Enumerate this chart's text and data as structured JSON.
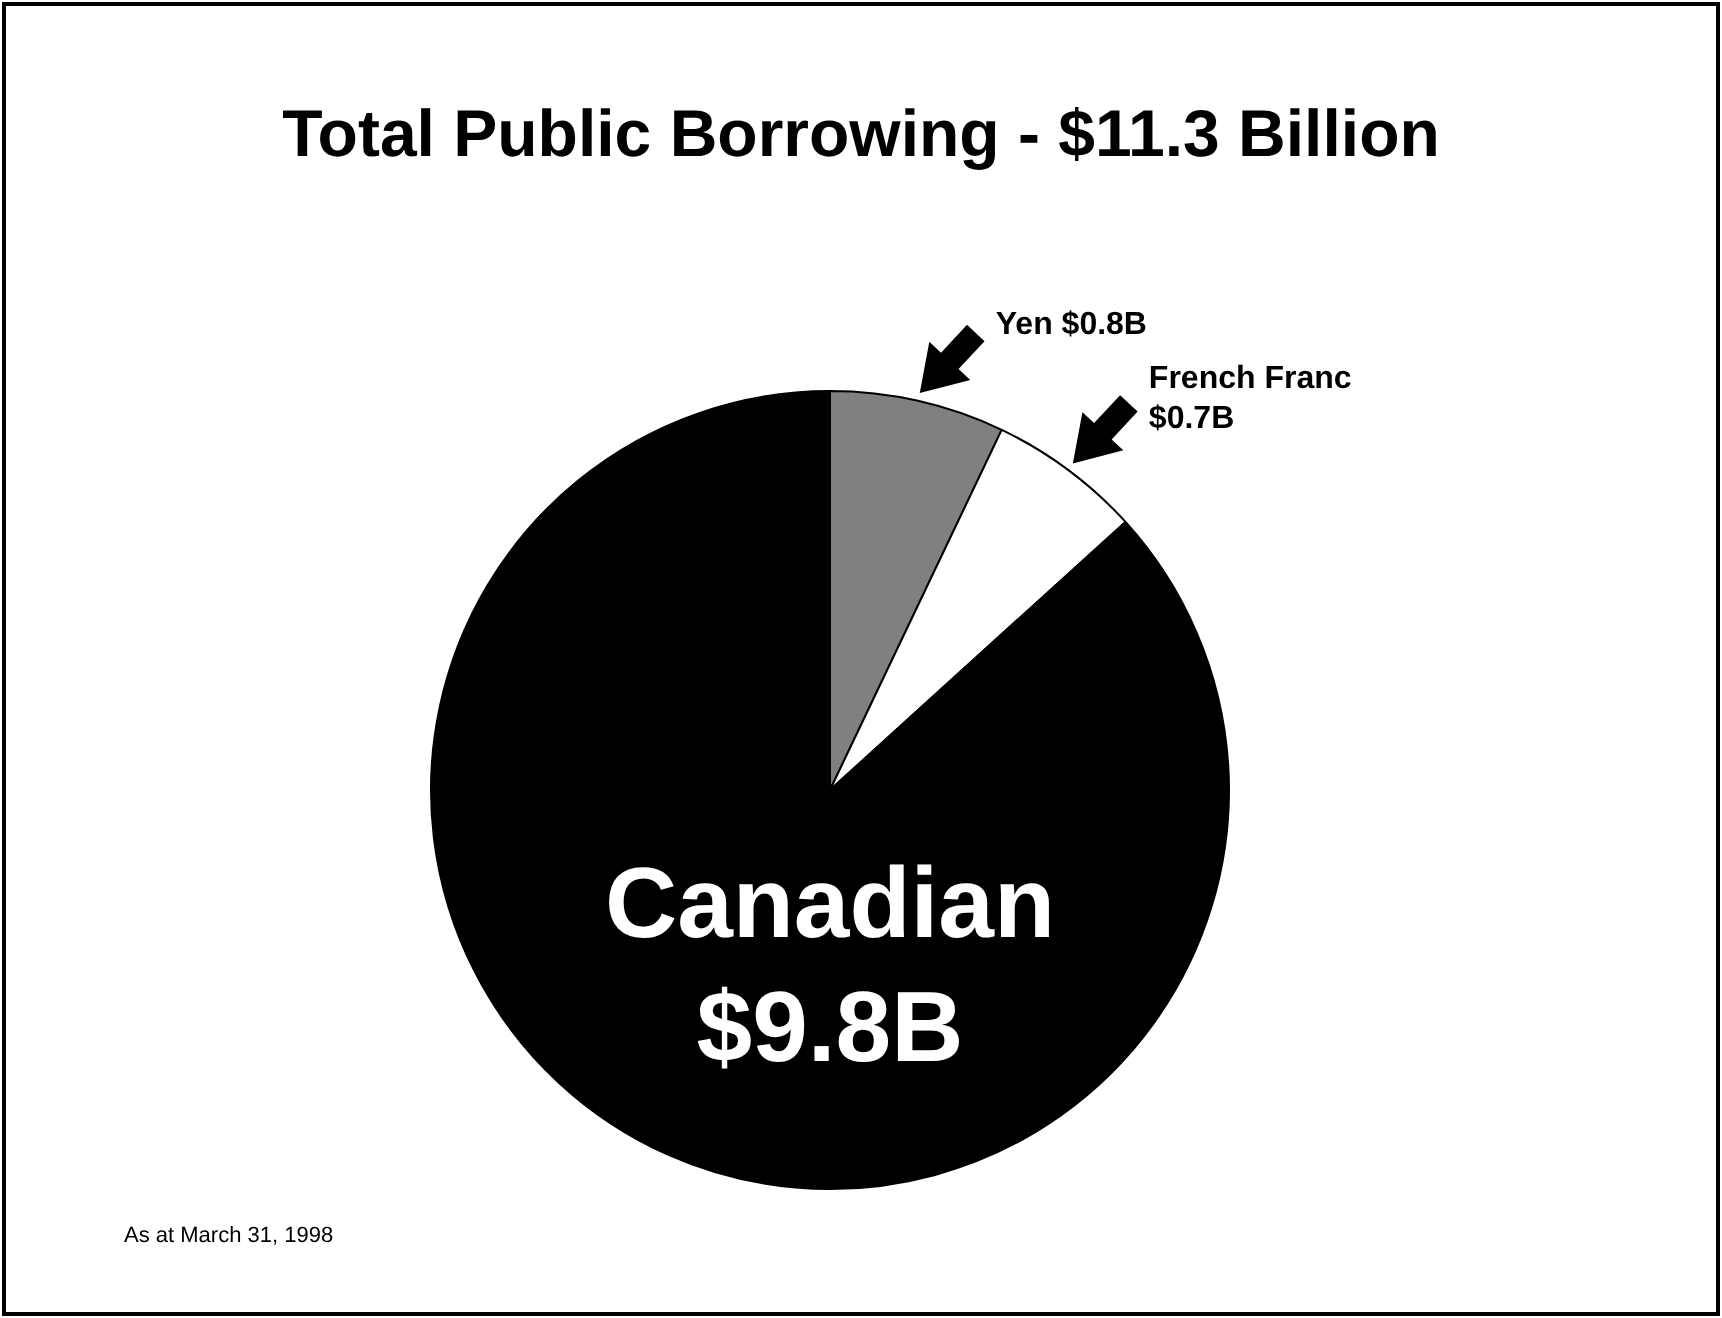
{
  "chart_data": {
    "type": "pie",
    "title": "Total Public Borrowing - $11.3 Billion",
    "categories": [
      "Yen",
      "French Franc",
      "Canadian"
    ],
    "values": [
      0.8,
      0.7,
      9.8
    ],
    "value_labels": [
      "$0.8B",
      "$0.7B",
      "$9.8B"
    ],
    "colors": [
      "#808080",
      "#ffffff",
      "#000000"
    ],
    "legend": false,
    "annotations": [
      "As at March 31, 1998"
    ]
  }
}
